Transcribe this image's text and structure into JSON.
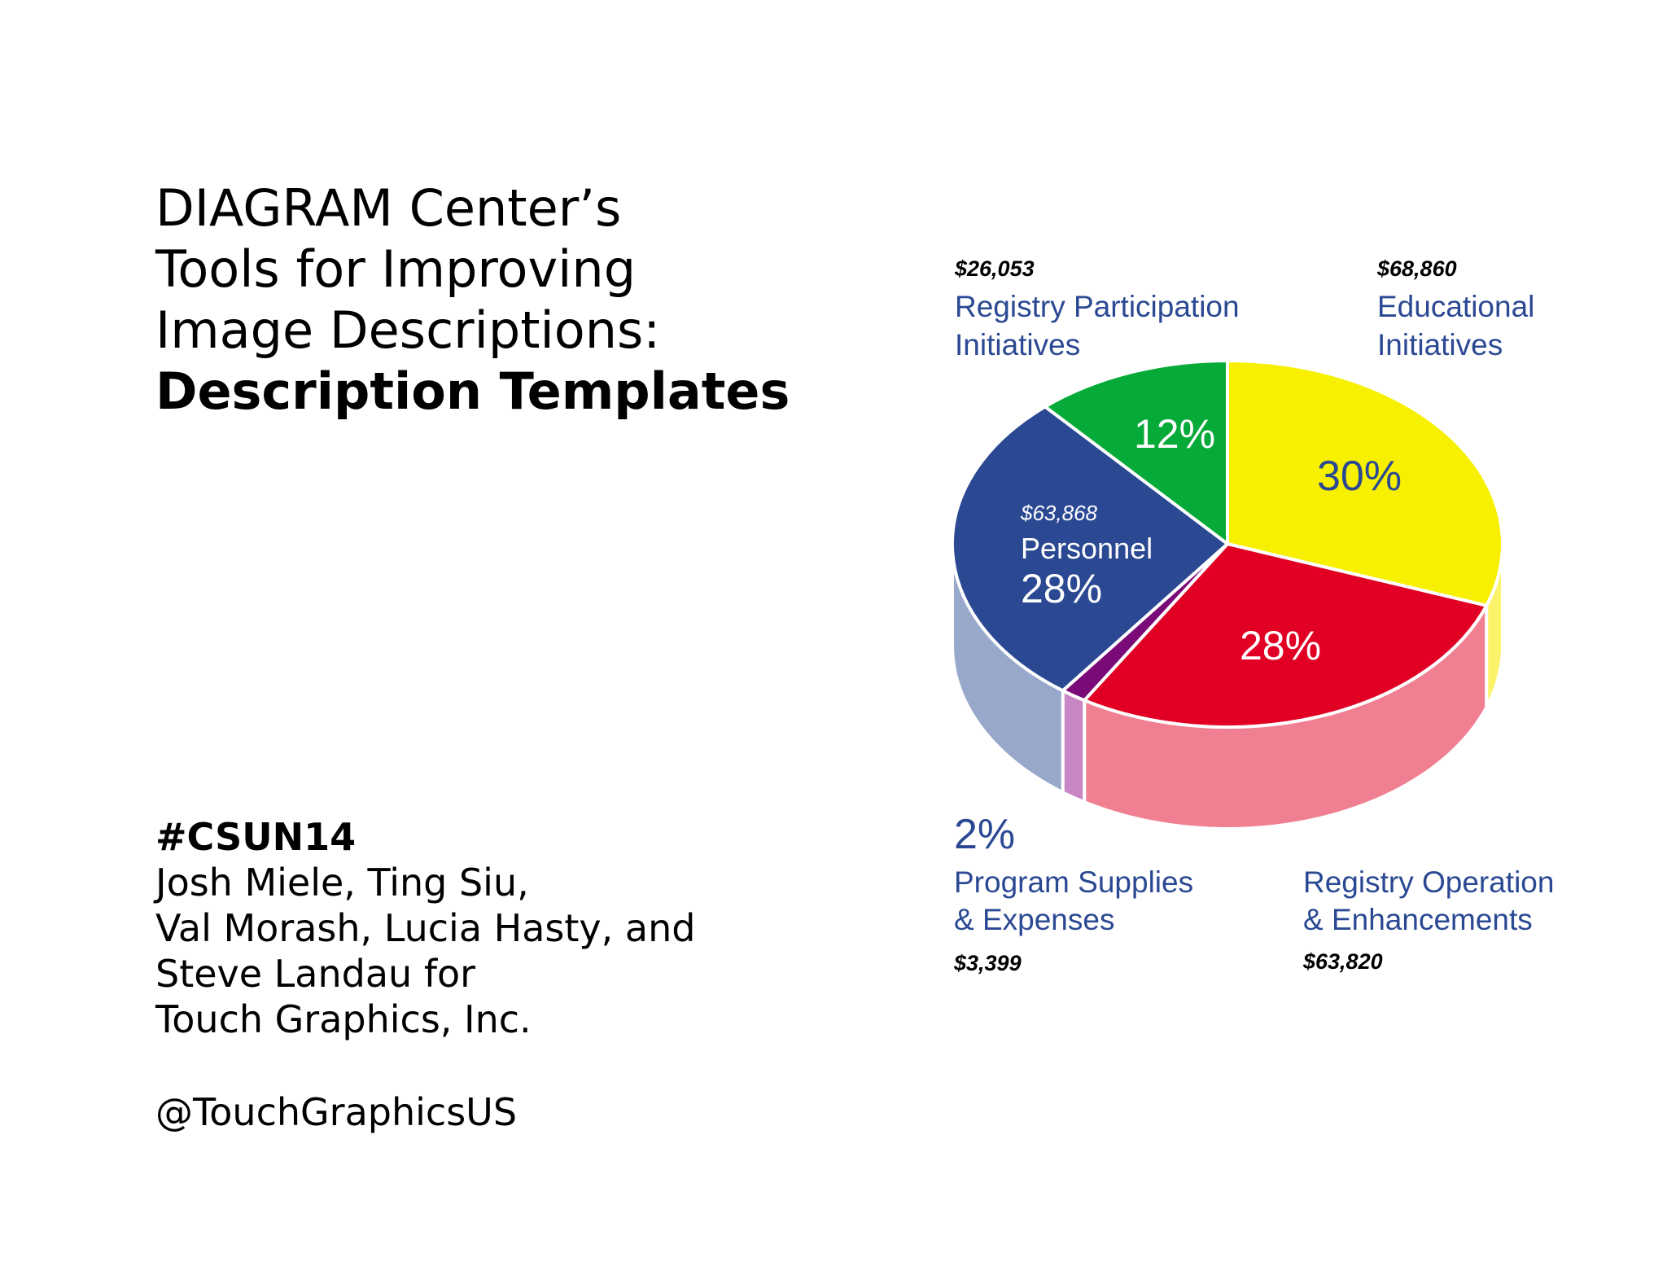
{
  "slide": {
    "title_lines": [
      "DIAGRAM Center’s",
      "Tools for Improving",
      "Image Descriptions:"
    ],
    "title_bold": "Description Templates",
    "hashtag": "#CSUN14",
    "credit_lines": [
      "Josh Miele, Ting Siu,",
      "Val Morash, Lucia Hasty, and",
      "Steve Landau for",
      "Touch Graphics, Inc."
    ],
    "twitter": "@TouchGraphicsUS"
  },
  "chart_data": {
    "type": "pie",
    "style": "3d-exploded-none",
    "start": "top",
    "direction": "clockwise",
    "slices": [
      {
        "key": "educational",
        "name": "Educational Initiatives",
        "label_lines": [
          "Educational",
          "Initiatives"
        ],
        "amount": "$68,860",
        "value": 68860,
        "percent": "30%",
        "color": "#f7f000",
        "side_color": "#fbf36a"
      },
      {
        "key": "registry-operation",
        "name": "Registry Operation & Enhancements",
        "label_lines": [
          "Registry Operation",
          "& Enhancements"
        ],
        "amount": "$63,820",
        "value": 63820,
        "percent": "28%",
        "color": "#e10024",
        "side_color": "#f07f92"
      },
      {
        "key": "program-supplies",
        "name": "Program Supplies & Expenses",
        "label_lines": [
          "Program Supplies",
          "& Expenses"
        ],
        "amount": "$3,399",
        "value": 3399,
        "percent": "2%",
        "color": "#7a0a78",
        "side_color": "#c986c4"
      },
      {
        "key": "personnel",
        "name": "Personnel",
        "label_lines": [
          "Personnel"
        ],
        "amount": "$63,868",
        "value": 63868,
        "percent": "28%",
        "color": "#2b4993",
        "side_color": "#97a8cb"
      },
      {
        "key": "registry-participation",
        "name": "Registry Participation Initiatives",
        "label_lines": [
          "Registry Participation",
          "Initiatives"
        ],
        "amount": "$26,053",
        "value": 26053,
        "percent": "12%",
        "color": "#06aa38",
        "side_color": "#7fd49a"
      }
    ],
    "label_color": "#2b4993",
    "amount_color": "#000000"
  }
}
